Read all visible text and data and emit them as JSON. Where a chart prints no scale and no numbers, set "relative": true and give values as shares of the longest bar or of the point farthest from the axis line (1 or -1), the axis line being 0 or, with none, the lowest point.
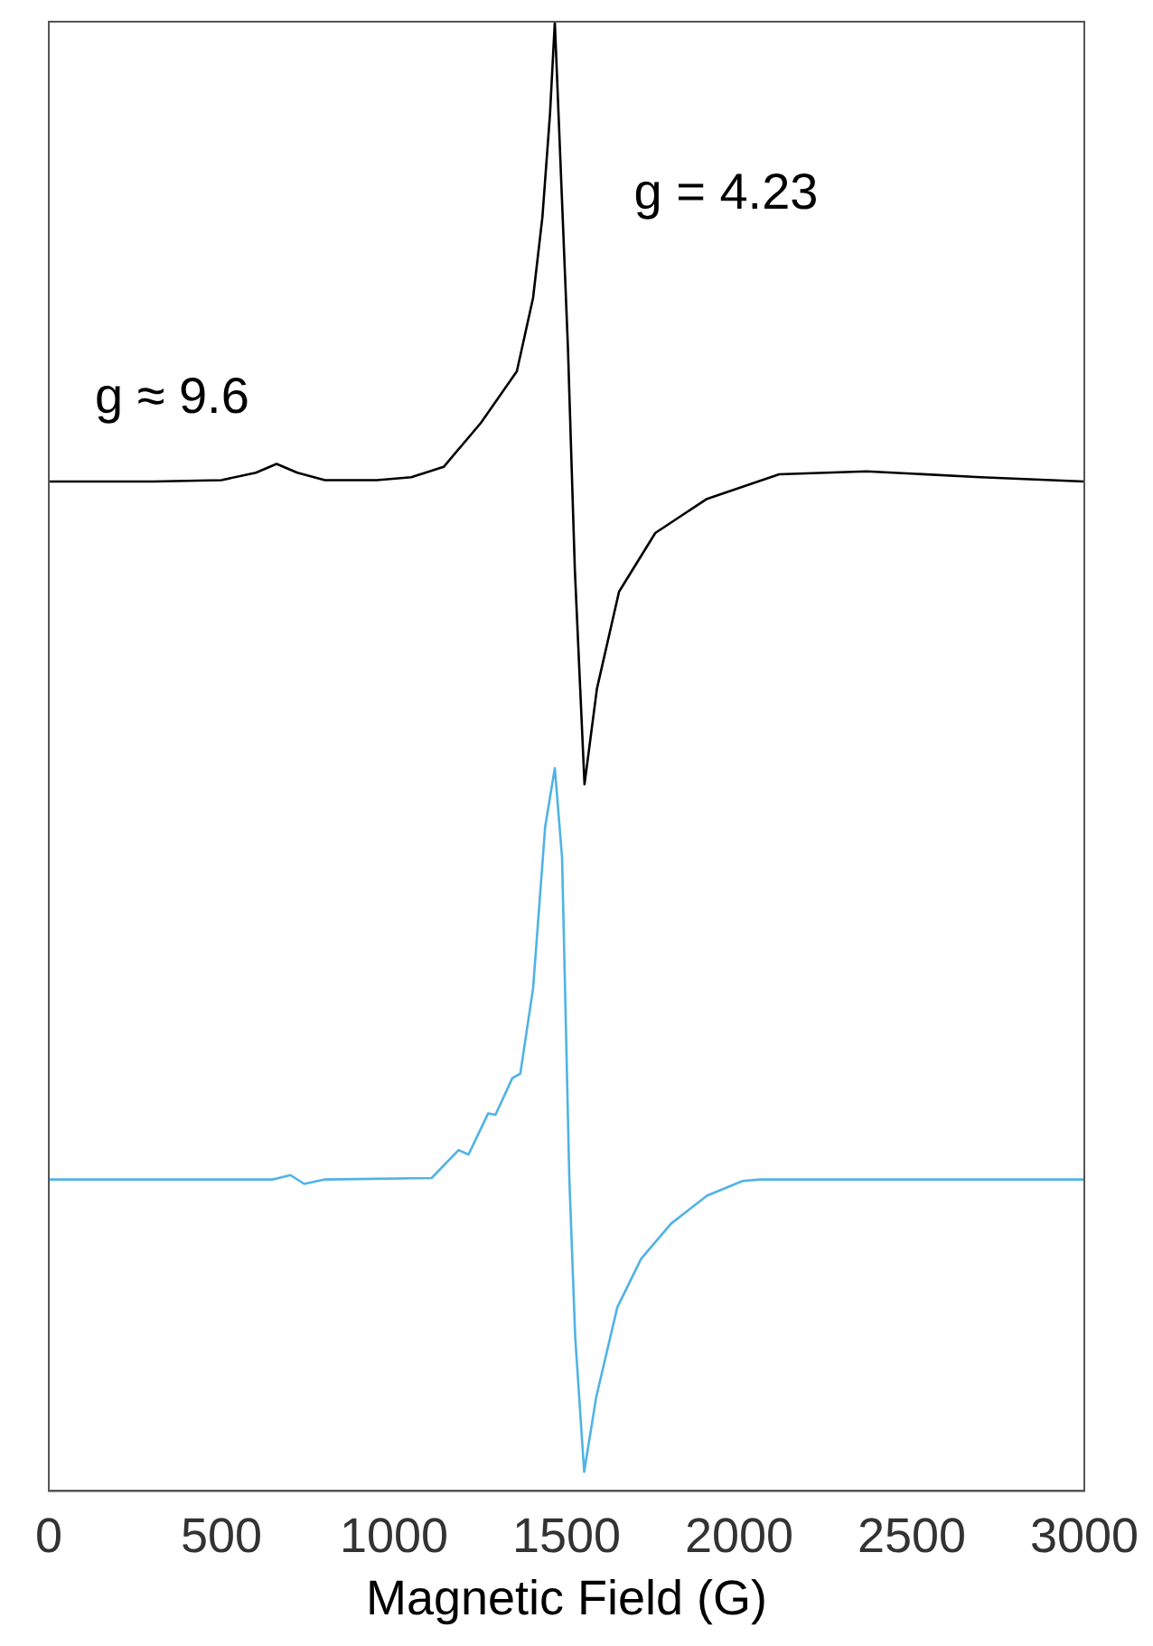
{
  "chart_data": {
    "type": "line",
    "xlabel": "Magnetic Field (G)",
    "relative": true,
    "xlim": [
      0,
      3000
    ],
    "xticks": [
      0,
      500,
      1000,
      1500,
      2000,
      2500,
      3000
    ],
    "grid": false,
    "legend": false,
    "marker": "none",
    "line_style": "solid",
    "annotations": [
      "g ≈ 9.6",
      "g = 4.23"
    ],
    "series": [
      {
        "color": "#000000",
        "x": [
          0,
          300,
          500,
          600,
          660,
          720,
          800,
          950,
          1050,
          1144,
          1252,
          1356,
          1403,
          1430,
          1452,
          1466,
          1504,
          1524,
          1552,
          1588,
          1652,
          1757,
          1905,
          2116,
          2369,
          2700,
          3000
        ],
        "values": [
          0.687,
          0.687,
          0.688,
          0.693,
          0.699,
          0.693,
          0.688,
          0.688,
          0.69,
          0.697,
          0.727,
          0.762,
          0.812,
          0.867,
          0.937,
          1.0,
          0.778,
          0.627,
          0.481,
          0.546,
          0.612,
          0.652,
          0.675,
          0.692,
          0.694,
          0.69,
          0.687
        ]
      },
      {
        "color": "#4fb3e6",
        "x": [
          0,
          650,
          700,
          740,
          800,
          1109,
          1187,
          1216,
          1273,
          1294,
          1343,
          1366,
          1403,
          1438,
          1466,
          1487,
          1508,
          1525,
          1551,
          1586,
          1647,
          1716,
          1803,
          1907,
          2010,
          2061,
          3000
        ],
        "values": [
          0.212,
          0.212,
          0.215,
          0.209,
          0.212,
          0.213,
          0.232,
          0.229,
          0.257,
          0.256,
          0.281,
          0.284,
          0.342,
          0.452,
          0.492,
          0.431,
          0.213,
          0.105,
          0.013,
          0.064,
          0.125,
          0.158,
          0.182,
          0.201,
          0.211,
          0.212,
          0.212
        ]
      }
    ]
  }
}
